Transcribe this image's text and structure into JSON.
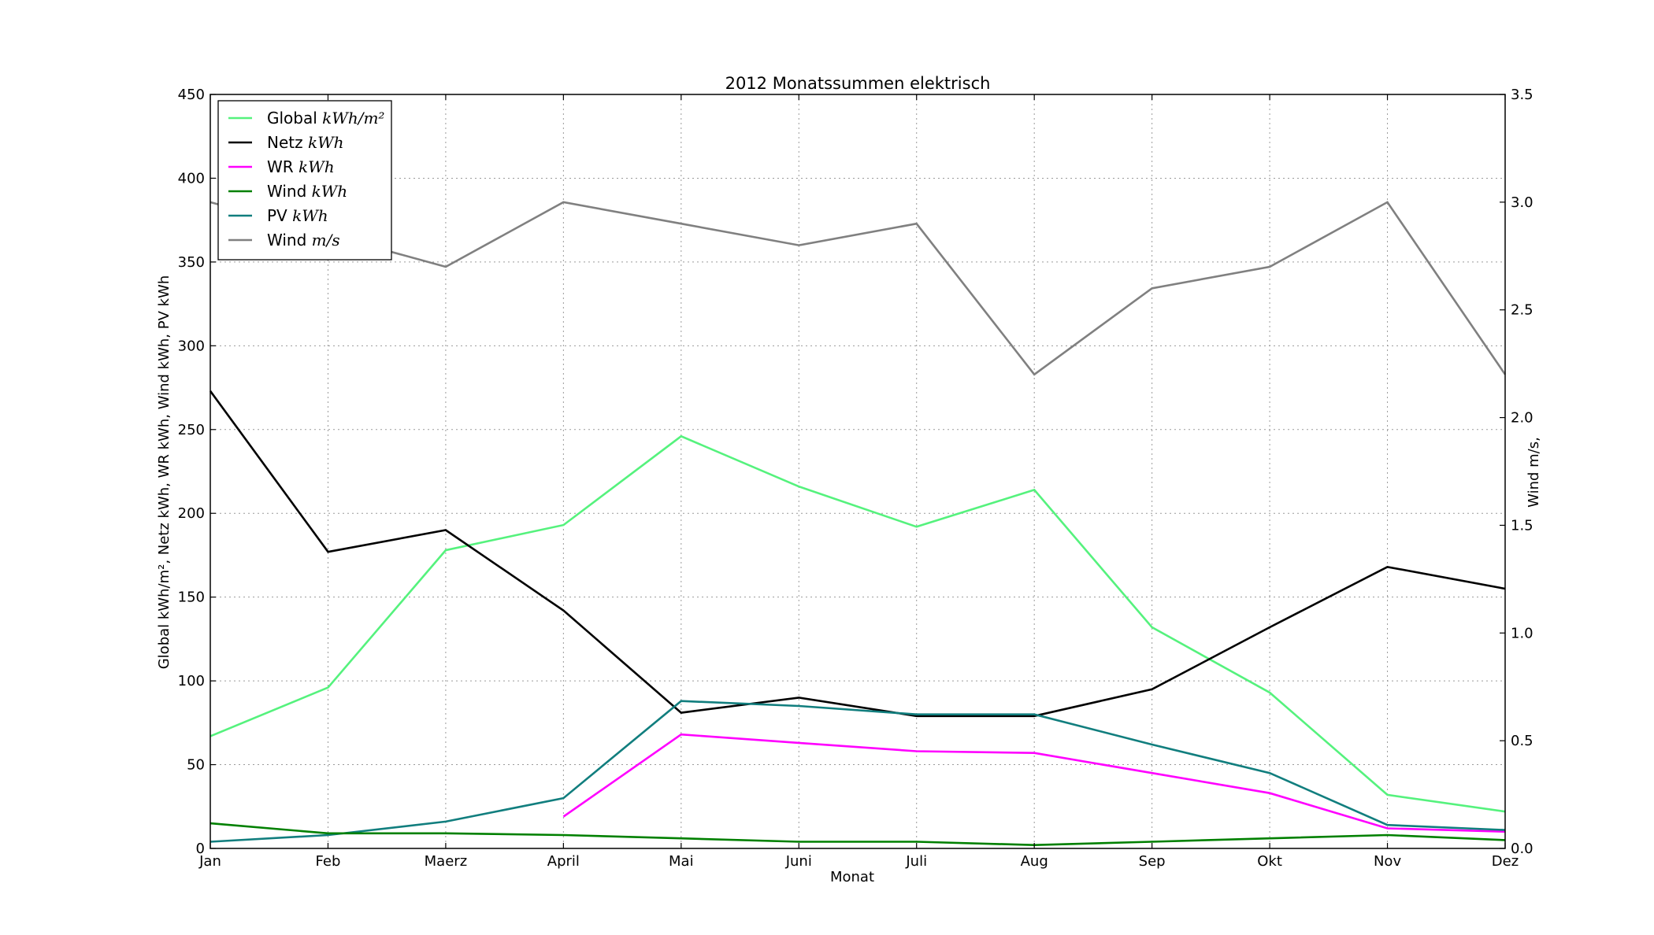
{
  "chart_data": {
    "type": "line",
    "title": "2012 Monatssummen elektrisch",
    "xlabel": "Monat",
    "ylabel_left": "Global kWh/m², Netz kWh, WR kWh, Wind kWh, PV kWh",
    "ylabel_right": "Wind m/s,",
    "categories": [
      "Jan",
      "Feb",
      "Maerz",
      "April",
      "Mai",
      "Juni",
      "Juli",
      "Aug",
      "Sep",
      "Okt",
      "Nov",
      "Dez"
    ],
    "ylim_left": [
      0,
      450
    ],
    "yticks_left": [
      "0",
      "50",
      "100",
      "150",
      "200",
      "250",
      "300",
      "350",
      "400",
      "450"
    ],
    "ylim_right": [
      0,
      3.5
    ],
    "yticks_right": [
      "0.0",
      "0.5",
      "1.0",
      "1.5",
      "2.0",
      "2.5",
      "3.0",
      "3.5"
    ],
    "grid": true,
    "legend_position": "top-left",
    "series": [
      {
        "name": "Global",
        "unit": "kWh/m²",
        "color": "#55f27d",
        "axis": "left",
        "values": [
          67,
          96,
          178,
          193,
          246,
          216,
          192,
          214,
          132,
          93,
          32,
          22
        ]
      },
      {
        "name": "Netz",
        "unit": "kWh",
        "color": "#000000",
        "axis": "left",
        "values": [
          273,
          177,
          190,
          142,
          81,
          90,
          79,
          79,
          95,
          132,
          168,
          155
        ]
      },
      {
        "name": "WR",
        "unit": "kWh",
        "color": "#ff00ff",
        "axis": "left",
        "values": [
          null,
          null,
          null,
          19,
          68,
          63,
          58,
          57,
          45,
          33,
          12,
          10
        ]
      },
      {
        "name": "Wind",
        "unit": "kWh",
        "color": "#008000",
        "axis": "left",
        "values": [
          15,
          9,
          9,
          8,
          6,
          4,
          4,
          2,
          4,
          6,
          8,
          5
        ]
      },
      {
        "name": "PV",
        "unit": "kWh",
        "color": "#117e7e",
        "axis": "left",
        "values": [
          4,
          8,
          16,
          30,
          88,
          85,
          80,
          80,
          62,
          45,
          14,
          11
        ]
      },
      {
        "name": "Wind",
        "unit": "m/s",
        "color": "#808080",
        "axis": "right",
        "values": [
          3.0,
          2.85,
          2.7,
          3.0,
          2.9,
          2.8,
          2.9,
          2.2,
          2.6,
          2.7,
          3.0,
          2.2
        ]
      }
    ]
  }
}
